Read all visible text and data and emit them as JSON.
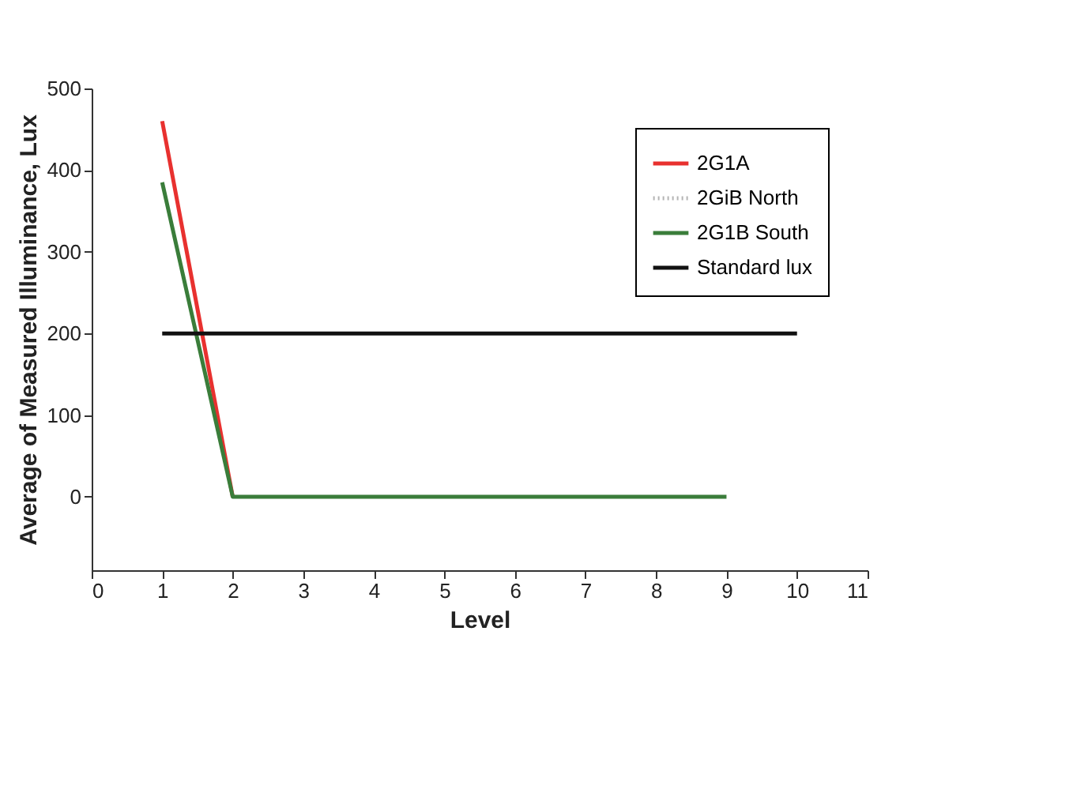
{
  "chart_data": {
    "type": "line",
    "xlabel": "Level",
    "ylabel": "Average of Measured Illuminance, Lux",
    "xlim": [
      0,
      11
    ],
    "xticks": [
      0,
      1,
      2,
      3,
      4,
      5,
      6,
      7,
      8,
      9,
      10,
      11
    ],
    "ylim": [
      -90,
      500
    ],
    "yticks": [
      0,
      100,
      200,
      300,
      400,
      500
    ],
    "grid": false,
    "legend": "top right",
    "marker": "none",
    "series": [
      {
        "name": "2G1A",
        "color": "#e8312f",
        "line_style": "solid",
        "x": [
          1,
          2
        ],
        "values": [
          460,
          0
        ]
      },
      {
        "name": "2GiB North",
        "color": "#b4b4b4",
        "line_style": "dotted"
      },
      {
        "name": "2G1B South",
        "color": "#3a7d3a",
        "line_style": "solid",
        "x": [
          1,
          2,
          3,
          4,
          5,
          6,
          7,
          8,
          9
        ],
        "values": [
          385,
          0,
          0,
          0,
          0,
          0,
          0,
          0,
          0
        ]
      },
      {
        "name": "Standard lux",
        "color": "#111111",
        "line_style": "solid",
        "x": [
          1,
          2,
          3,
          4,
          5,
          6,
          7,
          8,
          9,
          10
        ],
        "values": [
          200,
          200,
          200,
          200,
          200,
          200,
          200,
          200,
          200,
          200
        ]
      }
    ]
  }
}
